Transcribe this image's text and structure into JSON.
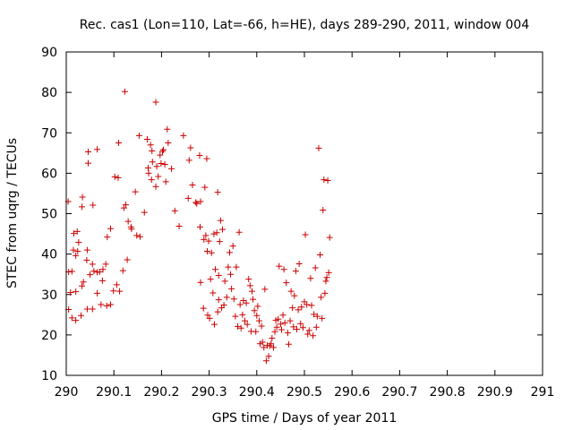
{
  "chart_data": {
    "type": "scatter",
    "title": "Rec. cas1 (Lon=110, Lat=-66, h=HE), days 289-290, 2011, window 004",
    "xlabel": "GPS time / Days of year 2011",
    "ylabel": "STEC from uqrg / TECUs",
    "xlim": [
      290,
      291
    ],
    "ylim": [
      10,
      90
    ],
    "xticks": [
      "290",
      "290.1",
      "290.2",
      "290.3",
      "290.4",
      "290.5",
      "290.6",
      "290.7",
      "290.8",
      "290.9",
      "291"
    ],
    "xtick_values": [
      290,
      290.1,
      290.2,
      290.3,
      290.4,
      290.5,
      290.6,
      290.7,
      290.8,
      290.9,
      291
    ],
    "yticks": [
      "10",
      "20",
      "30",
      "40",
      "50",
      "60",
      "70",
      "80",
      "90"
    ],
    "ytick_values": [
      10,
      20,
      30,
      40,
      50,
      60,
      70,
      80,
      90
    ],
    "marker": "plus",
    "color": "#cc0000",
    "grid": false,
    "series": [
      {
        "name": "STEC",
        "points": [
          [
            290.004,
            53.0
          ],
          [
            290.005,
            26.3
          ],
          [
            290.005,
            35.6
          ],
          [
            290.009,
            30.5
          ],
          [
            290.012,
            24.2
          ],
          [
            290.012,
            35.7
          ],
          [
            290.015,
            41.0
          ],
          [
            290.016,
            45.1
          ],
          [
            290.02,
            23.6
          ],
          [
            290.02,
            30.7
          ],
          [
            290.02,
            39.6
          ],
          [
            290.023,
            45.6
          ],
          [
            290.024,
            40.7
          ],
          [
            290.026,
            42.9
          ],
          [
            290.031,
            24.8
          ],
          [
            290.033,
            32.1
          ],
          [
            290.033,
            51.7
          ],
          [
            290.034,
            54.1
          ],
          [
            290.036,
            33.1
          ],
          [
            290.043,
            38.5
          ],
          [
            290.044,
            41.0
          ],
          [
            290.044,
            26.4
          ],
          [
            290.046,
            62.5
          ],
          [
            290.046,
            65.3
          ],
          [
            290.05,
            34.9
          ],
          [
            290.055,
            26.4
          ],
          [
            290.055,
            37.5
          ],
          [
            290.056,
            52.1
          ],
          [
            290.058,
            35.8
          ],
          [
            290.065,
            30.3
          ],
          [
            290.065,
            65.9
          ],
          [
            290.065,
            35.5
          ],
          [
            290.07,
            35.6
          ],
          [
            290.073,
            27.5
          ],
          [
            290.076,
            33.4
          ],
          [
            290.077,
            36.2
          ],
          [
            290.083,
            37.5
          ],
          [
            290.085,
            27.2
          ],
          [
            290.086,
            44.2
          ],
          [
            290.093,
            27.5
          ],
          [
            290.093,
            46.3
          ],
          [
            290.099,
            30.9
          ],
          [
            290.102,
            59.1
          ],
          [
            290.106,
            32.4
          ],
          [
            290.109,
            58.9
          ],
          [
            290.11,
            67.5
          ],
          [
            290.112,
            30.8
          ],
          [
            290.119,
            35.9
          ],
          [
            290.121,
            51.4
          ],
          [
            290.123,
            80.2
          ],
          [
            290.125,
            52.2
          ],
          [
            290.128,
            38.6
          ],
          [
            290.13,
            48.1
          ],
          [
            290.136,
            46.7
          ],
          [
            290.137,
            46.2
          ],
          [
            290.145,
            55.4
          ],
          [
            290.148,
            44.6
          ],
          [
            290.153,
            69.3
          ],
          [
            290.155,
            44.3
          ],
          [
            290.164,
            50.3
          ],
          [
            290.17,
            68.4
          ],
          [
            290.172,
            61.3
          ],
          [
            290.173,
            60.0
          ],
          [
            290.177,
            67.0
          ],
          [
            290.179,
            58.4
          ],
          [
            290.18,
            65.5
          ],
          [
            290.181,
            62.8
          ],
          [
            290.188,
            77.6
          ],
          [
            290.188,
            56.7
          ],
          [
            290.19,
            61.7
          ],
          [
            290.193,
            59.2
          ],
          [
            290.197,
            64.5
          ],
          [
            290.199,
            62.4
          ],
          [
            290.202,
            65.4
          ],
          [
            290.204,
            65.8
          ],
          [
            290.207,
            62.2
          ],
          [
            290.209,
            57.9
          ],
          [
            290.212,
            70.9
          ],
          [
            290.214,
            67.5
          ],
          [
            290.221,
            61.1
          ],
          [
            290.228,
            50.7
          ],
          [
            290.237,
            46.9
          ],
          [
            290.246,
            69.3
          ],
          [
            290.256,
            53.8
          ],
          [
            290.258,
            63.2
          ],
          [
            290.261,
            66.3
          ],
          [
            290.265,
            57.1
          ],
          [
            290.272,
            52.8
          ],
          [
            290.274,
            52.5
          ],
          [
            290.28,
            64.4
          ],
          [
            290.281,
            46.7
          ],
          [
            290.282,
            53.0
          ],
          [
            290.282,
            33.0
          ],
          [
            290.288,
            26.6
          ],
          [
            290.289,
            43.6
          ],
          [
            290.291,
            56.5
          ],
          [
            290.293,
            44.6
          ],
          [
            290.295,
            63.6
          ],
          [
            290.296,
            40.7
          ],
          [
            290.297,
            24.9
          ],
          [
            290.299,
            43.2
          ],
          [
            290.301,
            24.1
          ],
          [
            290.303,
            33.8
          ],
          [
            290.305,
            40.3
          ],
          [
            290.308,
            30.4
          ],
          [
            290.31,
            45.0
          ],
          [
            290.311,
            22.6
          ],
          [
            290.313,
            36.2
          ],
          [
            290.316,
            45.3
          ],
          [
            290.318,
            55.3
          ],
          [
            290.318,
            25.7
          ],
          [
            290.32,
            34.7
          ],
          [
            290.32,
            28.7
          ],
          [
            290.322,
            43.1
          ],
          [
            290.324,
            48.3
          ],
          [
            290.326,
            26.7
          ],
          [
            290.328,
            46.1
          ],
          [
            290.331,
            27.4
          ],
          [
            290.333,
            33.3
          ],
          [
            290.337,
            29.3
          ],
          [
            290.34,
            36.8
          ],
          [
            290.343,
            40.4
          ],
          [
            290.345,
            35.0
          ],
          [
            290.347,
            31.4
          ],
          [
            290.35,
            42.0
          ],
          [
            290.352,
            28.9
          ],
          [
            290.355,
            24.6
          ],
          [
            290.357,
            36.8
          ],
          [
            290.36,
            22.1
          ],
          [
            290.363,
            45.4
          ],
          [
            290.365,
            27.5
          ],
          [
            290.367,
            21.7
          ],
          [
            290.37,
            25.0
          ],
          [
            290.372,
            28.5
          ],
          [
            290.375,
            23.5
          ],
          [
            290.378,
            27.9
          ],
          [
            290.38,
            22.6
          ],
          [
            290.383,
            33.8
          ],
          [
            290.386,
            32.2
          ],
          [
            290.388,
            20.9
          ],
          [
            290.39,
            30.8
          ],
          [
            290.392,
            28.8
          ],
          [
            290.395,
            26.0
          ],
          [
            290.398,
            20.8
          ],
          [
            290.4,
            24.8
          ],
          [
            290.402,
            27.1
          ],
          [
            290.405,
            23.5
          ],
          [
            290.407,
            17.8
          ],
          [
            290.41,
            22.2
          ],
          [
            290.412,
            18.2
          ],
          [
            290.415,
            16.9
          ],
          [
            290.417,
            31.3
          ],
          [
            290.42,
            13.6
          ],
          [
            290.422,
            17.4
          ],
          [
            290.425,
            14.7
          ],
          [
            290.427,
            17.3
          ],
          [
            290.43,
            17.8
          ],
          [
            290.432,
            19.2
          ],
          [
            290.435,
            16.9
          ],
          [
            290.438,
            20.8
          ],
          [
            290.44,
            23.6
          ],
          [
            290.442,
            21.9
          ],
          [
            290.445,
            23.9
          ],
          [
            290.447,
            37.0
          ],
          [
            290.45,
            22.7
          ],
          [
            290.452,
            21.3
          ],
          [
            290.455,
            24.9
          ],
          [
            290.457,
            36.2
          ],
          [
            290.459,
            23.0
          ],
          [
            290.462,
            32.9
          ],
          [
            290.465,
            20.5
          ],
          [
            290.467,
            17.7
          ],
          [
            290.47,
            23.5
          ],
          [
            290.472,
            30.8
          ],
          [
            290.475,
            26.7
          ],
          [
            290.477,
            22.0
          ],
          [
            290.479,
            29.7
          ],
          [
            290.482,
            35.8
          ],
          [
            290.484,
            21.4
          ],
          [
            290.487,
            26.2
          ],
          [
            290.489,
            37.6
          ],
          [
            290.492,
            22.8
          ],
          [
            290.494,
            26.9
          ],
          [
            290.497,
            21.8
          ],
          [
            290.5,
            28.2
          ],
          [
            290.502,
            44.8
          ],
          [
            290.505,
            27.5
          ],
          [
            290.507,
            20.2
          ],
          [
            290.51,
            21.1
          ],
          [
            290.513,
            34.0
          ],
          [
            290.515,
            27.3
          ],
          [
            290.518,
            19.8
          ],
          [
            290.52,
            25.1
          ],
          [
            290.523,
            36.6
          ],
          [
            290.525,
            21.9
          ],
          [
            290.527,
            24.6
          ],
          [
            290.53,
            66.2
          ],
          [
            290.533,
            39.8
          ],
          [
            290.535,
            29.3
          ],
          [
            290.537,
            24.1
          ],
          [
            290.539,
            50.9
          ],
          [
            290.541,
            58.4
          ],
          [
            290.543,
            30.3
          ],
          [
            290.545,
            33.3
          ],
          [
            290.547,
            34.2
          ],
          [
            290.549,
            58.2
          ],
          [
            290.551,
            35.4
          ],
          [
            290.553,
            44.1
          ]
        ]
      }
    ]
  }
}
